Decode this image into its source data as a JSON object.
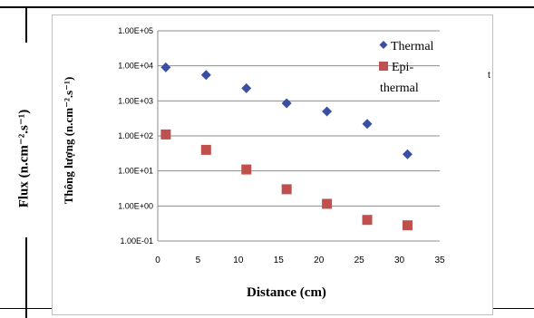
{
  "outer_ylabel": "Flux (n.cm⁻².s⁻¹)",
  "stray_text": "t",
  "chart_data": {
    "type": "scatter",
    "title": "",
    "xlabel": "Distance (cm)",
    "ylabel": "Thông lượng (n.cm⁻².s⁻¹)",
    "y_scale": "log",
    "xlim": [
      0,
      35
    ],
    "ylim": [
      0.1,
      100000
    ],
    "x_ticks": [
      "0",
      "5",
      "10",
      "15",
      "20",
      "25",
      "30",
      "35"
    ],
    "y_ticks": [
      "1.00E-01",
      "1.00E+00",
      "1.00E+01",
      "1.00E+02",
      "1.00E+03",
      "1.00E+04",
      "1.00E+05"
    ],
    "grid": "horizontal",
    "legend_position": "right",
    "series": [
      {
        "name": "Thermal",
        "marker": "diamond",
        "color": "#3a4fa3",
        "x": [
          1,
          6,
          11,
          16,
          21,
          26,
          31
        ],
        "y": [
          9000,
          5500,
          2300,
          850,
          500,
          220,
          30
        ]
      },
      {
        "name": "Epi-thermal",
        "marker": "square",
        "color": "#c0504d",
        "x": [
          1,
          6,
          11,
          16,
          21,
          26,
          31
        ],
        "y": [
          110,
          40,
          11,
          3,
          1.15,
          0.4,
          0.28
        ]
      }
    ]
  }
}
